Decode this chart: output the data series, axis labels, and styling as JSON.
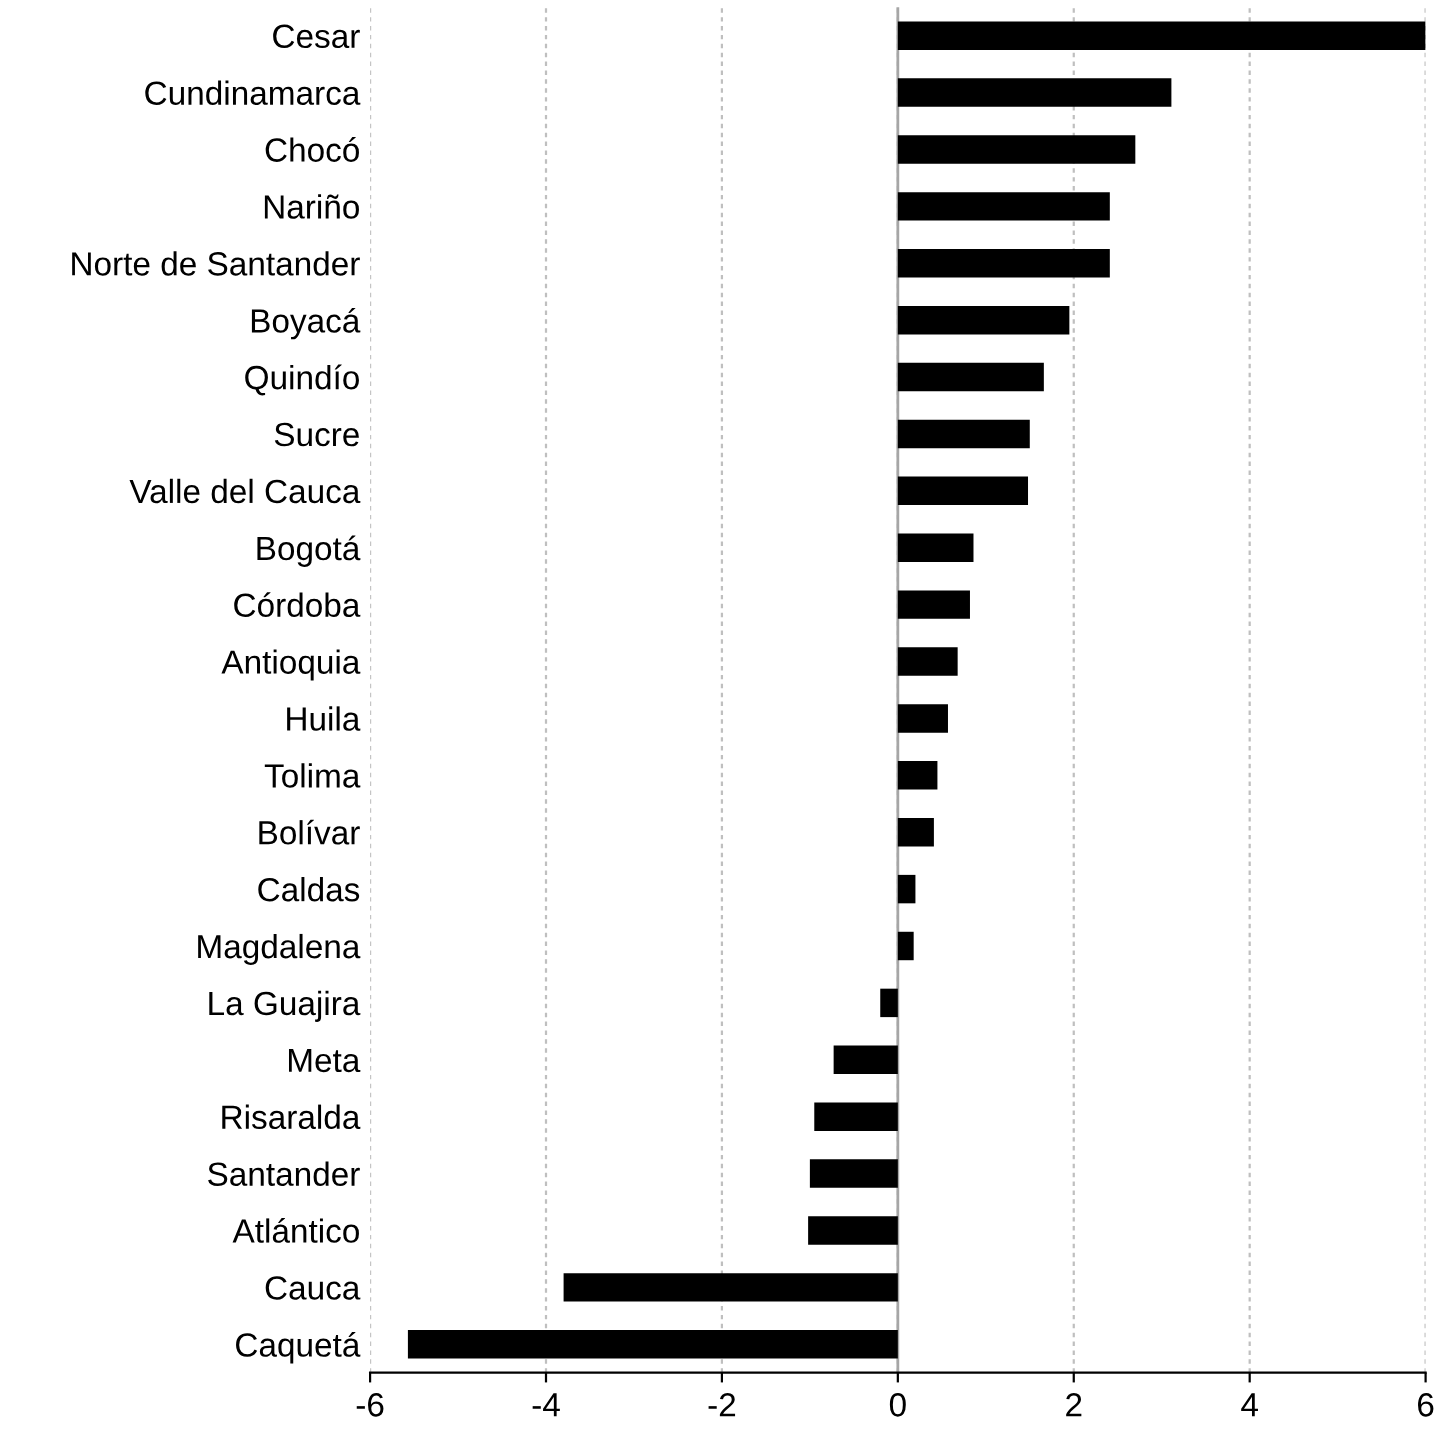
{
  "chart_data": {
    "type": "bar",
    "orientation": "horizontal",
    "categories": [
      "Cesar",
      "Cundinamarca",
      "Chocó",
      "Nariño",
      "Norte de Santander",
      "Boyacá",
      "Quindío",
      "Sucre",
      "Valle del Cauca",
      "Bogotá",
      "Córdoba",
      "Antioquia",
      "Huila",
      "Tolima",
      "Bolívar",
      "Caldas",
      "Magdalena",
      "La Guajira",
      "Meta",
      "Risaralda",
      "Santander",
      "Atlántico",
      "Cauca",
      "Caquetá"
    ],
    "values": [
      6.0,
      3.11,
      2.7,
      2.41,
      2.41,
      1.95,
      1.66,
      1.5,
      1.48,
      0.86,
      0.82,
      0.68,
      0.57,
      0.45,
      0.41,
      0.2,
      0.18,
      -0.2,
      -0.73,
      -0.95,
      -1.0,
      -1.02,
      -3.8,
      -5.57
    ],
    "color": "#000000",
    "xlim": [
      -6,
      6
    ],
    "xticks": [
      -6,
      -4,
      -2,
      0,
      2,
      4,
      6
    ],
    "grid": "x",
    "ref_lines": [
      {
        "axis": "x",
        "value": 0,
        "color": "#a6a6a6",
        "line_style": "solid"
      }
    ]
  }
}
